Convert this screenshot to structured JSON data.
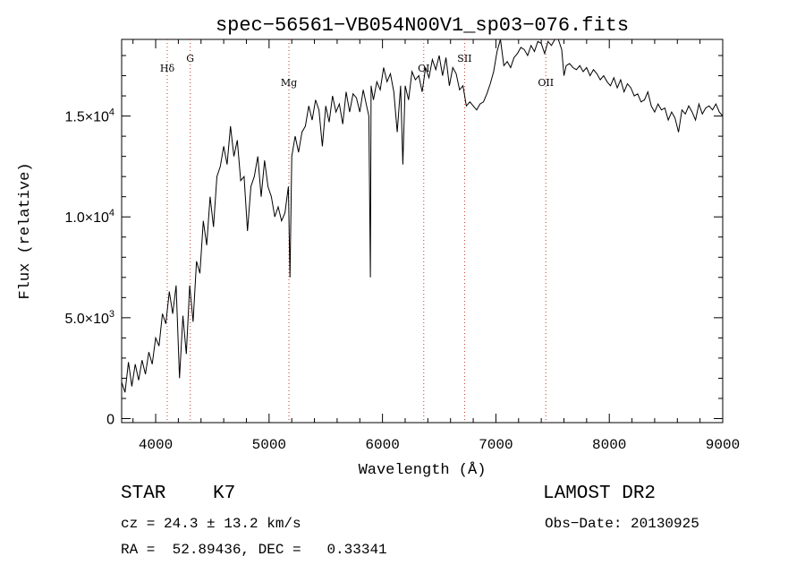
{
  "chart_data": {
    "type": "line",
    "title": "spec−56561−VB054N00V1_sp03−076.fits",
    "xlabel": "Wavelength (Å)",
    "ylabel": "Flux (relative)",
    "xlim": [
      3700,
      9000
    ],
    "ylim": [
      -200,
      18800
    ],
    "x_ticks": [
      {
        "value": 4000,
        "label": "4000"
      },
      {
        "value": 5000,
        "label": "5000"
      },
      {
        "value": 6000,
        "label": "6000"
      },
      {
        "value": 7000,
        "label": "7000"
      },
      {
        "value": 8000,
        "label": "8000"
      },
      {
        "value": 9000,
        "label": "9000"
      }
    ],
    "y_ticks": [
      {
        "value": 0,
        "mant": "0",
        "exp": ""
      },
      {
        "value": 5000,
        "mant": "5.0×10",
        "exp": "3"
      },
      {
        "value": 10000,
        "mant": "1.0×10",
        "exp": "4"
      },
      {
        "value": 15000,
        "mant": "1.5×10",
        "exp": "4"
      }
    ],
    "lines": [
      {
        "label": "Hδ",
        "x": 4102,
        "label_y": 17200
      },
      {
        "label": "G",
        "x": 4305,
        "label_y": 17700
      },
      {
        "label": "Mg",
        "x": 5175,
        "label_y": 16500
      },
      {
        "label": "OI",
        "x": 6364,
        "label_y": 17200
      },
      {
        "label": "SII",
        "x": 6724,
        "label_y": 17700
      },
      {
        "label": "OII",
        "x": 7440,
        "label_y": 16500
      }
    ],
    "line_color": "#c0392b",
    "series": [
      {
        "x": [
          3700,
          3730,
          3760,
          3790,
          3820,
          3850,
          3880,
          3910,
          3940,
          3970,
          4000,
          4030,
          4060,
          4090,
          4120,
          4150,
          4180,
          4210,
          4240,
          4270,
          4300,
          4330,
          4360,
          4390,
          4420,
          4450,
          4480,
          4510,
          4540,
          4570,
          4600,
          4630,
          4660,
          4690,
          4720,
          4750,
          4780,
          4810,
          4840,
          4870,
          4900,
          4930,
          4960,
          4990,
          5020,
          5050,
          5080,
          5110,
          5140,
          5170,
          5184,
          5200,
          5230,
          5260,
          5290,
          5320,
          5350,
          5380,
          5410,
          5440,
          5470,
          5500,
          5530,
          5560,
          5590,
          5620,
          5650,
          5680,
          5710,
          5740,
          5770,
          5800,
          5830,
          5860,
          5880,
          5893,
          5900,
          5920,
          5950,
          5980,
          6010,
          6040,
          6070,
          6100,
          6130,
          6160,
          6180,
          6200,
          6230,
          6260,
          6290,
          6320,
          6350,
          6380,
          6410,
          6440,
          6470,
          6500,
          6530,
          6560,
          6590,
          6620,
          6650,
          6680,
          6710,
          6740,
          6770,
          6800,
          6830,
          6860,
          6890,
          6920,
          6950,
          6980,
          7010,
          7040,
          7070,
          7100,
          7130,
          7160,
          7190,
          7220,
          7250,
          7280,
          7310,
          7340,
          7370,
          7400,
          7430,
          7460,
          7490,
          7520,
          7550,
          7580,
          7600,
          7620,
          7650,
          7680,
          7710,
          7740,
          7770,
          7800,
          7830,
          7860,
          7890,
          7920,
          7950,
          7980,
          8010,
          8040,
          8070,
          8100,
          8130,
          8160,
          8190,
          8220,
          8250,
          8280,
          8310,
          8340,
          8370,
          8400,
          8430,
          8460,
          8490,
          8520,
          8550,
          8580,
          8610,
          8640,
          8670,
          8700,
          8730,
          8760,
          8790,
          8820,
          8850,
          8880,
          8910,
          8940,
          8970,
          9000
        ],
        "y": [
          1800,
          1300,
          2800,
          1600,
          2700,
          1900,
          2900,
          2200,
          3300,
          2700,
          4000,
          3600,
          5200,
          4700,
          6300,
          5200,
          6600,
          2000,
          5100,
          3200,
          6600,
          4800,
          7800,
          7200,
          9800,
          8600,
          11000,
          9500,
          12000,
          12500,
          13500,
          12600,
          14500,
          13000,
          13800,
          11800,
          12000,
          9300,
          11500,
          12000,
          13000,
          11000,
          12800,
          11500,
          11000,
          10000,
          10500,
          9800,
          10200,
          11500,
          7000,
          13000,
          14000,
          13200,
          14200,
          14500,
          15500,
          14800,
          15800,
          15300,
          13500,
          15500,
          14700,
          16000,
          15200,
          15600,
          14600,
          16200,
          15200,
          16100,
          15900,
          15200,
          16300,
          15500,
          15000,
          7000,
          16500,
          15800,
          16700,
          16300,
          17400,
          16700,
          17100,
          16200,
          14200,
          16500,
          12600,
          16500,
          15800,
          17200,
          16800,
          17000,
          16200,
          17400,
          16900,
          17800,
          17300,
          18000,
          17000,
          17900,
          16500,
          17400,
          17100,
          16300,
          16500,
          15500,
          15700,
          15500,
          15300,
          15600,
          15700,
          16100,
          16600,
          17200,
          18200,
          18800,
          17500,
          17700,
          17400,
          17900,
          18100,
          18400,
          18300,
          18000,
          18500,
          18200,
          18700,
          18600,
          18100,
          18700,
          18500,
          18800,
          18800,
          18300,
          17000,
          17500,
          17600,
          17400,
          17300,
          17500,
          17200,
          17400,
          17000,
          17300,
          17100,
          16800,
          17000,
          16700,
          16500,
          16900,
          16400,
          16800,
          16200,
          16600,
          16400,
          16000,
          16100,
          15700,
          15800,
          16200,
          15500,
          15200,
          15600,
          15300,
          15400,
          14800,
          15200,
          14900,
          14200,
          15300,
          15100,
          15500,
          15200,
          14800,
          15600,
          15100,
          15400,
          15500,
          15300,
          15600,
          15200,
          15000
        ]
      }
    ]
  },
  "info": {
    "object_class": "STAR",
    "subclass": "K7",
    "survey": "LAMOST DR2",
    "cz": "cz = 24.3 ± 13.2 km/s",
    "obs_date": "Obs−Date: 20130925",
    "radec": "RA =  52.89436, DEC =   0.33341"
  }
}
